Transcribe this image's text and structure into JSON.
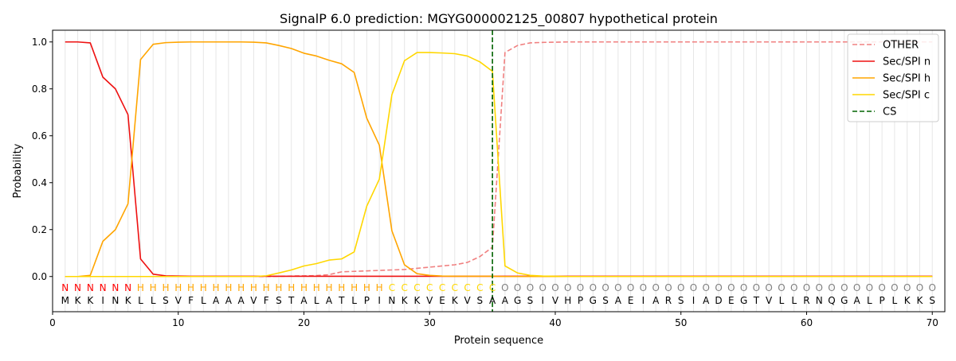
{
  "chart_data": {
    "type": "line",
    "title": "SignalP 6.0 prediction: MGYG000002125_00807 hypothetical protein",
    "xlabel": "Protein sequence",
    "ylabel": "Probability",
    "xlim": [
      0,
      71
    ],
    "ylim": [
      -0.15,
      1.05
    ],
    "xticks": [
      0,
      10,
      20,
      30,
      40,
      50,
      60,
      70
    ],
    "yticks": [
      0.0,
      0.2,
      0.4,
      0.6,
      0.8,
      1.0
    ],
    "xtick_labels": [
      "0",
      "10",
      "20",
      "30",
      "40",
      "50",
      "60",
      "70"
    ],
    "ytick_labels": [
      "0.0",
      "0.2",
      "0.4",
      "0.6",
      "0.8",
      "1.0"
    ],
    "grid": "vertical lines at each residue",
    "legend_position": "top-right",
    "sequence": [
      "M",
      "K",
      "K",
      "I",
      "N",
      "K",
      "L",
      "L",
      "S",
      "V",
      "F",
      "L",
      "A",
      "A",
      "A",
      "V",
      "F",
      "S",
      "T",
      "A",
      "L",
      "A",
      "T",
      "L",
      "P",
      "I",
      "N",
      "K",
      "K",
      "V",
      "E",
      "K",
      "V",
      "S",
      "A",
      "A",
      "G",
      "S",
      "I",
      "V",
      "H",
      "P",
      "G",
      "S",
      "A",
      "E",
      "I",
      "A",
      "R",
      "S",
      "I",
      "A",
      "D",
      "E",
      "G",
      "T",
      "V",
      "L",
      "L",
      "R",
      "N",
      "Q",
      "G",
      "A",
      "L",
      "P",
      "L",
      "K",
      "K",
      "S"
    ],
    "labels": [
      "N",
      "N",
      "N",
      "N",
      "N",
      "N",
      "H",
      "H",
      "H",
      "H",
      "H",
      "H",
      "H",
      "H",
      "H",
      "H",
      "H",
      "H",
      "H",
      "H",
      "H",
      "H",
      "H",
      "H",
      "H",
      "H",
      "C",
      "C",
      "C",
      "C",
      "C",
      "C",
      "C",
      "C",
      "C",
      "O",
      "O",
      "O",
      "O",
      "O",
      "O",
      "O",
      "O",
      "O",
      "O",
      "O",
      "O",
      "O",
      "O",
      "O",
      "O",
      "O",
      "O",
      "O",
      "O",
      "O",
      "O",
      "O",
      "O",
      "O",
      "O",
      "O",
      "O",
      "O",
      "O",
      "O",
      "O",
      "O",
      "O",
      "O"
    ],
    "label_colors": {
      "N": "#ff0000",
      "H": "#ffa500",
      "C": "#ffd700",
      "O": "#808080"
    },
    "cleavage_site": 35,
    "series": [
      {
        "name": "OTHER",
        "color": "#f08080",
        "dash": "dashed",
        "values": [
          0.0,
          0.0,
          0.0,
          0.0,
          0.0,
          0.0,
          0.0,
          0.0,
          0.0,
          0.0,
          0.0,
          0.0,
          0.0,
          0.0,
          0.0,
          0.0,
          0.0,
          0.001,
          0.002,
          0.003,
          0.004,
          0.008,
          0.02,
          0.022,
          0.024,
          0.026,
          0.028,
          0.03,
          0.035,
          0.04,
          0.045,
          0.05,
          0.06,
          0.085,
          0.125,
          0.955,
          0.985,
          0.996,
          0.998,
          0.999,
          1.0,
          1.0,
          1.0,
          1.0,
          1.0,
          1.0,
          1.0,
          1.0,
          1.0,
          1.0,
          1.0,
          1.0,
          1.0,
          1.0,
          1.0,
          1.0,
          1.0,
          1.0,
          1.0,
          1.0,
          1.0,
          1.0,
          1.0,
          1.0,
          1.0,
          1.0,
          1.0,
          1.0,
          1.0,
          1.0
        ]
      },
      {
        "name": "Sec/SPI n",
        "color": "#ee1111",
        "dash": "solid",
        "values": [
          1.0,
          1.0,
          0.996,
          0.85,
          0.8,
          0.69,
          0.075,
          0.01,
          0.003,
          0.002,
          0.001,
          0.001,
          0.001,
          0.001,
          0.001,
          0.001,
          0.001,
          0.001,
          0.001,
          0.001,
          0.001,
          0.001,
          0.001,
          0.001,
          0.001,
          0.001,
          0.001,
          0.001,
          0.001,
          0.001,
          0.001,
          0.001,
          0.001,
          0.001,
          0.001,
          0.001,
          0.001,
          0.001,
          0.001,
          0.001,
          0.001,
          0.001,
          0.001,
          0.001,
          0.001,
          0.001,
          0.001,
          0.001,
          0.001,
          0.001,
          0.001,
          0.001,
          0.001,
          0.001,
          0.001,
          0.001,
          0.001,
          0.001,
          0.001,
          0.001,
          0.001,
          0.001,
          0.001,
          0.001,
          0.001,
          0.001,
          0.001,
          0.001,
          0.001,
          0.001
        ]
      },
      {
        "name": "Sec/SPI h",
        "color": "#ffa500",
        "dash": "solid",
        "values": [
          0.0,
          0.0,
          0.005,
          0.15,
          0.2,
          0.31,
          0.925,
          0.99,
          0.997,
          0.999,
          1.0,
          1.0,
          1.0,
          1.0,
          1.0,
          0.999,
          0.996,
          0.985,
          0.972,
          0.952,
          0.94,
          0.922,
          0.907,
          0.87,
          0.675,
          0.56,
          0.195,
          0.05,
          0.012,
          0.005,
          0.002,
          0.001,
          0.001,
          0.001,
          0.001,
          0.0,
          0.0,
          0.0,
          0.0,
          0.0,
          0.0,
          0.0,
          0.0,
          0.0,
          0.0,
          0.0,
          0.0,
          0.0,
          0.0,
          0.0,
          0.0,
          0.0,
          0.0,
          0.0,
          0.0,
          0.0,
          0.0,
          0.0,
          0.0,
          0.0,
          0.0,
          0.0,
          0.0,
          0.0,
          0.0,
          0.0,
          0.0,
          0.0,
          0.0,
          0.0
        ]
      },
      {
        "name": "Sec/SPI c",
        "color": "#ffd700",
        "dash": "solid",
        "values": [
          0.0,
          0.0,
          0.0,
          0.0,
          0.0,
          0.0,
          0.0,
          0.0,
          0.0,
          0.0,
          0.0,
          0.0,
          0.0,
          0.0,
          0.0,
          0.0,
          0.003,
          0.015,
          0.028,
          0.045,
          0.055,
          0.07,
          0.075,
          0.105,
          0.3,
          0.415,
          0.775,
          0.92,
          0.955,
          0.955,
          0.953,
          0.95,
          0.94,
          0.915,
          0.875,
          0.045,
          0.015,
          0.005,
          0.002,
          0.001,
          0.0,
          0.0,
          0.0,
          0.0,
          0.0,
          0.0,
          0.0,
          0.0,
          0.0,
          0.0,
          0.0,
          0.0,
          0.0,
          0.0,
          0.0,
          0.0,
          0.0,
          0.0,
          0.0,
          0.0,
          0.0,
          0.0,
          0.0,
          0.0,
          0.0,
          0.0,
          0.0,
          0.0,
          0.0,
          0.0
        ]
      }
    ],
    "legend": [
      {
        "name": "OTHER",
        "color": "#f08080",
        "dash": "dashed"
      },
      {
        "name": "Sec/SPI n",
        "color": "#ee1111",
        "dash": "solid"
      },
      {
        "name": "Sec/SPI h",
        "color": "#ffa500",
        "dash": "solid"
      },
      {
        "name": "Sec/SPI c",
        "color": "#ffd700",
        "dash": "solid"
      },
      {
        "name": "CS",
        "color": "#006400",
        "dash": "dashed"
      }
    ]
  }
}
